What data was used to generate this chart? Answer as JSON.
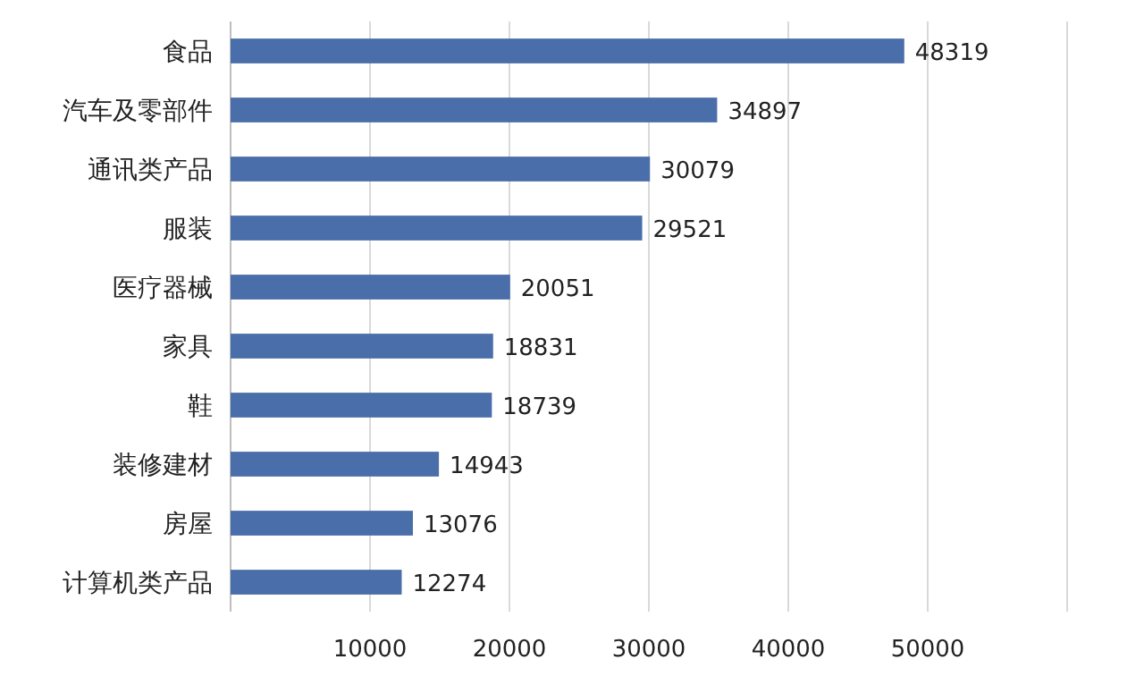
{
  "chart_data": {
    "type": "bar",
    "orientation": "horizontal",
    "categories": [
      "食品",
      "汽车及零部件",
      "通讯类产品",
      "服装",
      "医疗器械",
      "家具",
      "鞋",
      "装修建材",
      "房屋",
      "计算机类产品"
    ],
    "values": [
      48319,
      34897,
      30079,
      29521,
      20051,
      18831,
      18739,
      14943,
      13076,
      12274
    ],
    "color": "#4a6ea9",
    "data_labels": true,
    "grid": "x",
    "xlim": [
      0,
      60000
    ],
    "xticks": [
      10000,
      20000,
      30000,
      40000,
      50000
    ]
  }
}
